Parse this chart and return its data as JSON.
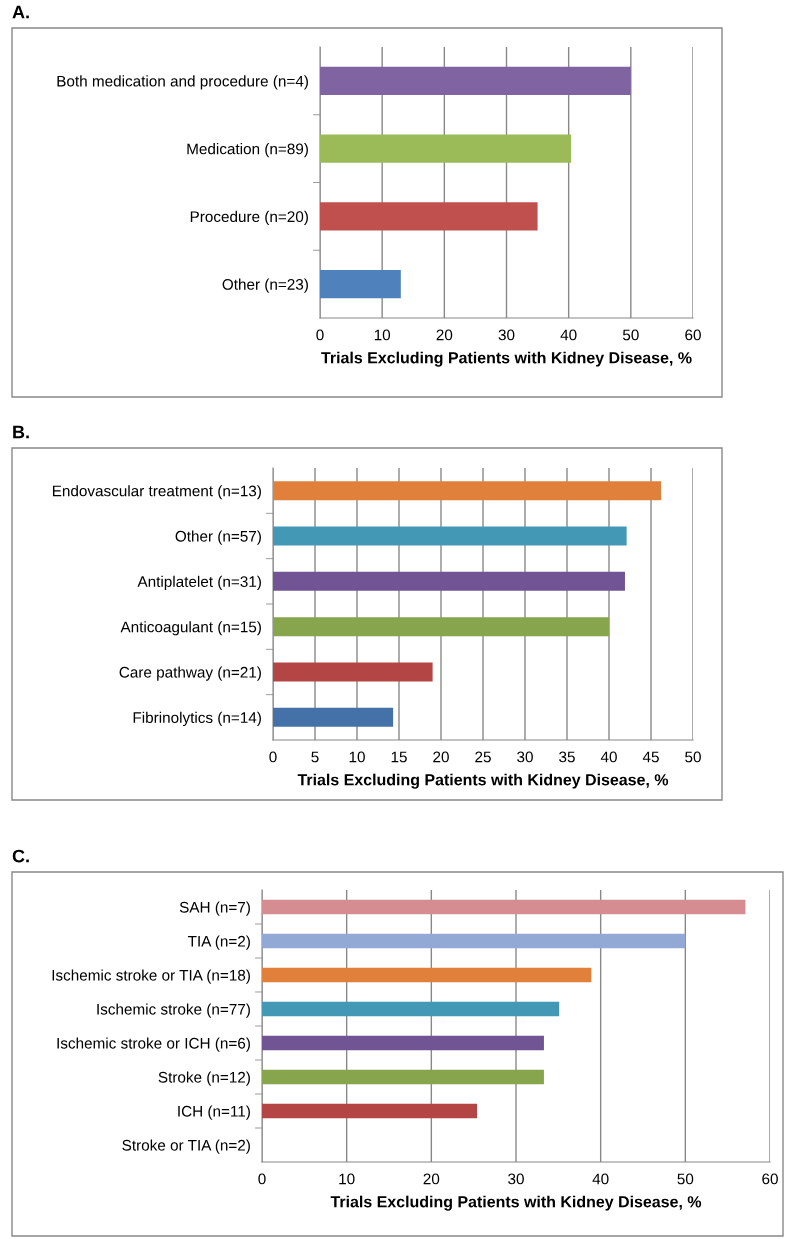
{
  "chart_data": [
    {
      "type": "bar",
      "title": "A.",
      "orientation": "horizontal",
      "xlabel": "Trials Excluding Patients with Kidney Disease, %",
      "categories": [
        "Both medication and procedure (n=4)",
        "Medication (n=89)",
        "Procedure (n=20)",
        "Other (n=23)"
      ],
      "values": [
        50,
        40.4,
        35,
        13
      ],
      "colors": [
        "#8064a2",
        "#9bbb59",
        "#c0504d",
        "#4f81bd"
      ],
      "xlim": [
        0,
        60
      ],
      "xticks": [
        0,
        10,
        20,
        30,
        40,
        50,
        60
      ],
      "grid": "x"
    },
    {
      "type": "bar",
      "title": "B.",
      "orientation": "horizontal",
      "xlabel": "Trials Excluding Patients with Kidney Disease, %",
      "categories": [
        "Endovascular treatment (n=13)",
        "Other (n=57)",
        "Antiplatelet (n=31)",
        "Anticoagulant (n=15)",
        "Care pathway (n=21)",
        "Fibrinolytics (n=14)"
      ],
      "values": [
        46.2,
        42.1,
        41.9,
        40,
        19,
        14.3
      ],
      "colors": [
        "#e0803a",
        "#4298b5",
        "#705494",
        "#87a54d",
        "#b34644",
        "#4472a8"
      ],
      "xlim": [
        0,
        50
      ],
      "xticks": [
        0,
        5,
        10,
        15,
        20,
        25,
        30,
        35,
        40,
        45,
        50
      ],
      "grid": "x"
    },
    {
      "type": "bar",
      "title": "C.",
      "orientation": "horizontal",
      "xlabel": "Trials Excluding Patients with Kidney Disease, %",
      "categories": [
        "SAH (n=7)",
        "TIA (n=2)",
        "Ischemic stroke or TIA (n=18)",
        "Ischemic stroke (n=77)",
        "Ischemic stroke or ICH (n=6)",
        "Stroke (n=12)",
        "ICH (n=11)",
        "Stroke or TIA (n=2)"
      ],
      "values": [
        57.1,
        50,
        38.9,
        35.1,
        33.3,
        33.3,
        25.4,
        0
      ],
      "colors": [
        "#d58d91",
        "#92a9d6",
        "#e0803a",
        "#4298b5",
        "#705494",
        "#87a54d",
        "#b34644",
        "#4472a8"
      ],
      "xlim": [
        0,
        60
      ],
      "xticks": [
        0,
        10,
        20,
        30,
        40,
        50,
        60
      ],
      "grid": "x"
    }
  ]
}
